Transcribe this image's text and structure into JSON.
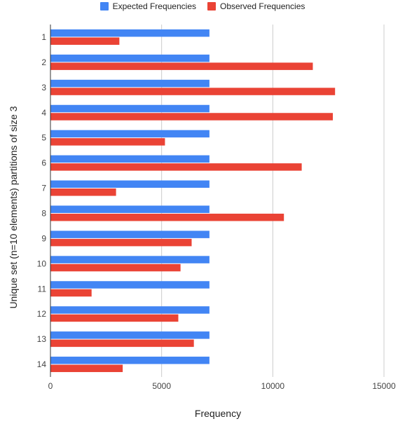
{
  "chart_data": {
    "type": "bar",
    "orientation": "horizontal",
    "title": "",
    "xlabel": "Frequency",
    "ylabel": "Unique set (n=10 elements) partitions of size 3",
    "categories": [
      "1",
      "2",
      "3",
      "4",
      "5",
      "6",
      "7",
      "8",
      "9",
      "10",
      "11",
      "12",
      "13",
      "14"
    ],
    "series": [
      {
        "name": "Expected Frequencies",
        "color": "#4285f4",
        "values": [
          7150,
          7150,
          7150,
          7150,
          7150,
          7150,
          7150,
          7150,
          7150,
          7150,
          7150,
          7150,
          7150,
          7150
        ]
      },
      {
        "name": "Observed Frequencies",
        "color": "#ea4335",
        "values": [
          3100,
          11800,
          12800,
          12700,
          5150,
          11300,
          2950,
          10500,
          6350,
          5850,
          1850,
          5750,
          6450,
          3250
        ]
      }
    ],
    "xlim": [
      0,
      15000
    ],
    "xticks": [
      0,
      5000,
      10000,
      15000
    ],
    "grid": true,
    "legend_position": "top"
  }
}
